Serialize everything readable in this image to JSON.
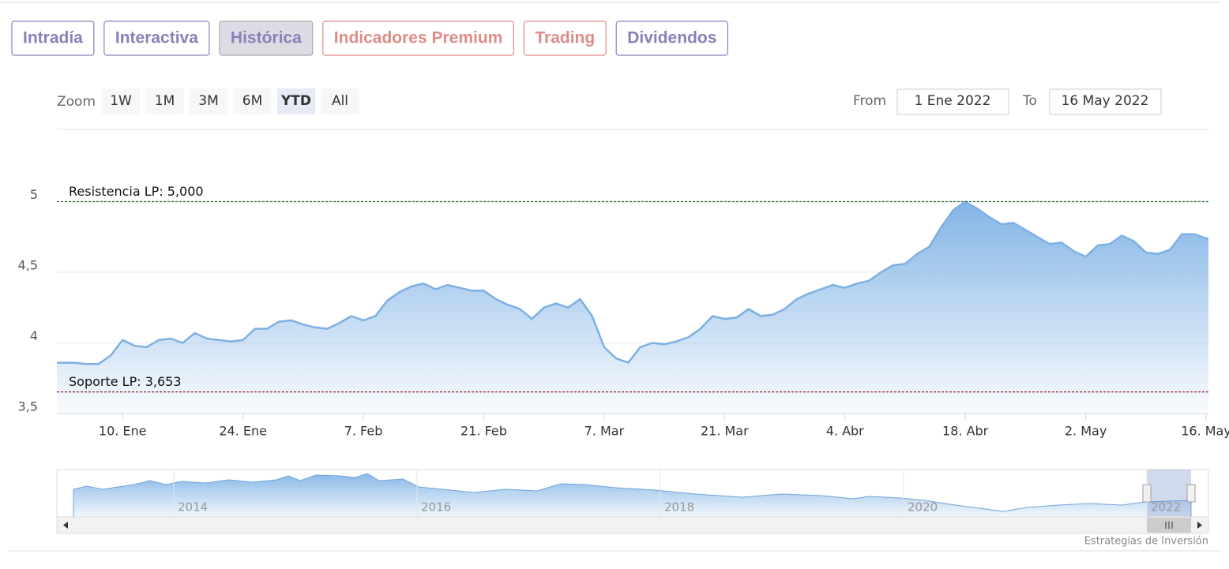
{
  "tabs": [
    {
      "label": "Intradía",
      "color": "#8a80b8"
    },
    {
      "label": "Interactiva",
      "color": "#8a80b8"
    },
    {
      "label": "Histórica",
      "color": "#8a80b8"
    },
    {
      "label": "Indicadores Premium",
      "color": "#dd8c88"
    },
    {
      "label": "Trading",
      "color": "#dd8c88"
    },
    {
      "label": "Dividendos",
      "color": "#8a80b8"
    }
  ],
  "active_tab": 2,
  "zoom": {
    "label": "Zoom",
    "buttons": [
      "1W",
      "1M",
      "3M",
      "6M",
      "YTD",
      "All"
    ],
    "selected": 4
  },
  "range": {
    "from_label": "From",
    "from": "1 Ene 2022",
    "to_label": "To",
    "to": "16 May 2022"
  },
  "chart_data": {
    "type": "line",
    "categories": [
      null,
      null,
      null,
      null,
      null,
      "10. Ene",
      null,
      null,
      null,
      null,
      null,
      null,
      null,
      null,
      null,
      "24. Ene",
      null,
      null,
      null,
      null,
      null,
      null,
      null,
      null,
      null,
      "7. Feb",
      null,
      null,
      null,
      null,
      null,
      null,
      null,
      null,
      null,
      "21. Feb",
      null,
      null,
      null,
      null,
      null,
      null,
      null,
      null,
      null,
      "7. Mar",
      null,
      null,
      null,
      null,
      null,
      null,
      null,
      null,
      null,
      "21. Mar",
      null,
      null,
      null,
      null,
      null,
      null,
      null,
      null,
      null,
      "4. Abr",
      null,
      null,
      null,
      null,
      null,
      null,
      null,
      null,
      null,
      "18. Abr",
      null,
      null,
      null,
      null,
      null,
      null,
      null,
      null,
      null,
      "2. May",
      null,
      null,
      null,
      null,
      null,
      null,
      null,
      null,
      null,
      "16. May"
    ],
    "values": [
      3.86,
      3.86,
      3.85,
      3.85,
      3.91,
      4.02,
      3.98,
      3.97,
      4.02,
      4.03,
      4.0,
      4.07,
      4.03,
      4.02,
      4.01,
      4.02,
      4.1,
      4.1,
      4.15,
      4.16,
      4.13,
      4.11,
      4.1,
      4.14,
      4.19,
      4.16,
      4.19,
      4.3,
      4.36,
      4.4,
      4.42,
      4.38,
      4.41,
      4.39,
      4.37,
      4.37,
      4.31,
      4.27,
      4.24,
      4.17,
      4.25,
      4.28,
      4.25,
      4.31,
      4.19,
      3.97,
      3.89,
      3.86,
      3.97,
      4.0,
      3.99,
      4.01,
      4.04,
      4.1,
      4.19,
      4.17,
      4.18,
      4.24,
      4.19,
      4.2,
      4.24,
      4.31,
      4.35,
      4.38,
      4.41,
      4.39,
      4.42,
      4.44,
      4.5,
      4.55,
      4.56,
      4.63,
      4.68,
      4.82,
      4.94,
      5.0,
      4.95,
      4.89,
      4.84,
      4.85,
      4.8,
      4.75,
      4.7,
      4.71,
      4.65,
      4.61,
      4.69,
      4.7,
      4.76,
      4.72,
      4.64,
      4.63,
      4.66,
      4.77,
      4.77,
      4.74
    ],
    "color": "#7cb0e4",
    "ylim": [
      3.5,
      5.5
    ],
    "yticks": [
      {
        "value": 3.5,
        "label": "3,5"
      },
      4,
      {
        "value": 4.5,
        "label": "4,5"
      },
      5
    ],
    "grid": true,
    "plot_lines": [
      {
        "value": 5,
        "label": "Resistencia LP: 5,000",
        "color": "#2b6b2b"
      },
      {
        "value": 3.653,
        "label": "Soporte LP: 3,653",
        "color": "#8b1f1f"
      }
    ]
  },
  "navigator": {
    "labels": [
      "2014",
      "2016",
      "2018",
      "2020",
      "2022"
    ]
  },
  "credits": "Estrategias de Inversión"
}
